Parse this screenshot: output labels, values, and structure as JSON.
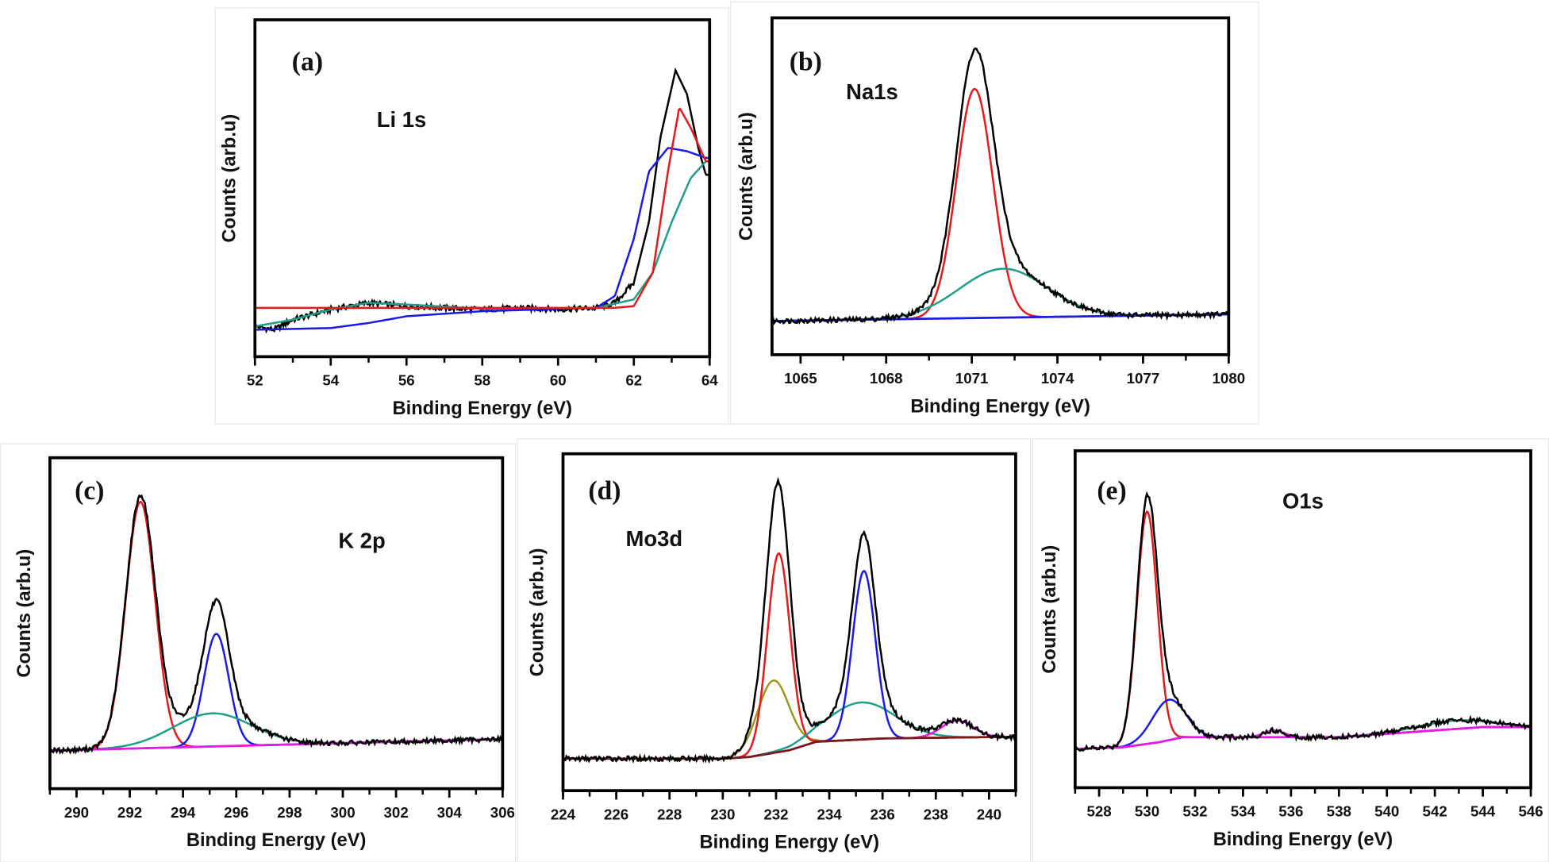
{
  "chart_data": [
    {
      "type": "line",
      "panel_label": "(a)",
      "annotation": "Li 1s",
      "xlabel": "Binding Energy (eV)",
      "ylabel": "Counts (arb.u)",
      "xlim": [
        52,
        64
      ],
      "ylim": [
        0,
        100
      ],
      "xticks": [
        52,
        54,
        56,
        58,
        60,
        62,
        64
      ],
      "minor_step": 1,
      "background": {
        "color": "",
        "points": [
          [
            52,
            9
          ],
          [
            64,
            9
          ]
        ]
      },
      "lines": [
        {
          "color": "#000000",
          "points": [
            [
              52,
              9
            ],
            [
              52.5,
              8
            ],
            [
              53,
              11
            ],
            [
              54,
              14
            ],
            [
              55,
              16
            ],
            [
              56,
              15
            ],
            [
              57,
              14.5
            ],
            [
              58,
              14
            ],
            [
              59,
              14.5
            ],
            [
              60,
              14
            ],
            [
              61,
              14.5
            ],
            [
              61.5,
              16
            ],
            [
              62,
              22
            ],
            [
              62.4,
              40
            ],
            [
              62.7,
              65
            ],
            [
              63.1,
              85
            ],
            [
              63.4,
              78
            ],
            [
              63.7,
              62
            ],
            [
              63.9,
              54
            ]
          ]
        },
        {
          "color": "#1f9e8a",
          "points": [
            [
              52,
              9
            ],
            [
              53,
              11
            ],
            [
              54,
              14
            ],
            [
              55,
              16
            ],
            [
              56,
              15.5
            ],
            [
              58,
              14.2
            ],
            [
              61,
              14.5
            ],
            [
              62,
              17
            ],
            [
              62.5,
              25
            ],
            [
              63,
              40
            ],
            [
              63.5,
              53
            ],
            [
              63.9,
              58
            ]
          ]
        },
        {
          "color": "#1a1ae6",
          "points": [
            [
              52,
              8
            ],
            [
              54,
              8.5
            ],
            [
              55,
              10
            ],
            [
              56,
              12
            ],
            [
              58,
              13.5
            ],
            [
              61,
              14.5
            ],
            [
              61.5,
              18
            ],
            [
              62,
              35
            ],
            [
              62.4,
              55
            ],
            [
              62.9,
              62
            ],
            [
              63.4,
              61
            ],
            [
              63.9,
              59
            ]
          ]
        },
        {
          "color": "#e61a1a",
          "points": [
            [
              61.5,
              14.5
            ],
            [
              62,
              15
            ],
            [
              62.5,
              25
            ],
            [
              62.9,
              55
            ],
            [
              63.2,
              74
            ],
            [
              63.5,
              68
            ],
            [
              63.9,
              58
            ]
          ]
        }
      ],
      "peaks": [],
      "envelope": false
    },
    {
      "type": "line",
      "panel_label": "(b)",
      "annotation": "Na1s",
      "xlabel": "Binding Energy (eV)",
      "ylabel": "Counts (arb.u)",
      "xlim": [
        1064,
        1080
      ],
      "ylim": [
        0,
        100
      ],
      "xticks": [
        1065,
        1068,
        1071,
        1074,
        1077,
        1080
      ],
      "minor_step": 1.5,
      "background": {
        "color": "#1a1ae6",
        "points": [
          [
            1064,
            10
          ],
          [
            1080,
            12
          ]
        ]
      },
      "lines": [],
      "peaks": [
        {
          "color": "#e61a1a",
          "center": 1071.1,
          "fwhm": 1.5,
          "height": 68
        },
        {
          "color": "#1f9e8a",
          "center": 1072.1,
          "fwhm": 3.6,
          "height": 14.5
        }
      ],
      "envelope": true
    },
    {
      "type": "line",
      "panel_label": "(c)",
      "annotation": "K 2p",
      "xlabel": "Binding Energy (eV)",
      "ylabel": "Counts (arb.u)",
      "xlim": [
        289,
        306
      ],
      "ylim": [
        0,
        100
      ],
      "xticks": [
        290,
        292,
        294,
        296,
        298,
        300,
        302,
        304,
        306
      ],
      "minor_step": 1,
      "background": {
        "color": "#e619e6",
        "points": [
          [
            289,
            11.5
          ],
          [
            306,
            15
          ]
        ]
      },
      "lines": [],
      "peaks": [
        {
          "color": "#e61a1a",
          "center": 292.4,
          "fwhm": 1.3,
          "height": 74.5
        },
        {
          "color": "#1a1ae6",
          "center": 295.25,
          "fwhm": 1.1,
          "height": 34
        },
        {
          "color": "#1f9e8a",
          "center": 295.1,
          "fwhm": 3.5,
          "height": 10
        }
      ],
      "envelope": true
    },
    {
      "type": "line",
      "panel_label": "(d)",
      "annotation": "Mo3d",
      "xlabel": "Binding Energy (eV)",
      "ylabel": "Counts (arb.u)",
      "xlim": [
        224,
        241
      ],
      "ylim": [
        0,
        100
      ],
      "xticks": [
        224,
        226,
        228,
        230,
        232,
        234,
        236,
        238,
        240
      ],
      "minor_step": 1,
      "background": {
        "color": "#7a1a1a",
        "points": [
          [
            224,
            9.5
          ],
          [
            230,
            9.5
          ],
          [
            231,
            10
          ],
          [
            232.5,
            12
          ],
          [
            233.5,
            14.5
          ],
          [
            236,
            15.5
          ],
          [
            241,
            16
          ]
        ]
      },
      "lines": [],
      "peaks": [
        {
          "color": "#9a9a1a",
          "center": 231.9,
          "fwhm": 1.4,
          "height": 21.5
        },
        {
          "color": "#e61a1a",
          "center": 232.1,
          "fwhm": 1.0,
          "height": 59
        },
        {
          "color": "#1f9e8a",
          "center": 235.2,
          "fwhm": 3.0,
          "height": 11
        },
        {
          "color": "#1a1ae6",
          "center": 235.3,
          "fwhm": 1.0,
          "height": 50
        },
        {
          "color": "#e619e6",
          "center": 238.8,
          "fwhm": 1.4,
          "height": 5
        }
      ],
      "envelope": true
    },
    {
      "type": "line",
      "panel_label": "(e)",
      "annotation": "O1s",
      "xlabel": "Binding Energy (eV)",
      "ylabel": "Counts (arb.u)",
      "xlim": [
        527,
        546
      ],
      "ylim": [
        0,
        100
      ],
      "xticks": [
        528,
        530,
        532,
        534,
        536,
        538,
        540,
        542,
        544,
        546
      ],
      "minor_step": 1,
      "background": {
        "color": "#e619e6",
        "points": [
          [
            527,
            11.5
          ],
          [
            529,
            12
          ],
          [
            530.5,
            13.5
          ],
          [
            531.5,
            15
          ],
          [
            538,
            15
          ],
          [
            540,
            16
          ],
          [
            542,
            17
          ],
          [
            544,
            18
          ],
          [
            546,
            18
          ]
        ]
      },
      "lines": [],
      "peaks": [
        {
          "color": "#e61a1a",
          "center": 530.0,
          "fwhm": 1.0,
          "height": 69
        },
        {
          "color": "#1a1ae6",
          "center": 530.9,
          "fwhm": 1.6,
          "height": 12
        },
        {
          "color": "#e619e6",
          "center": 535.3,
          "fwhm": 1.0,
          "height": 2
        },
        {
          "color": "#1f9e8a",
          "center": 542.8,
          "fwhm": 3.5,
          "height": 2.5
        }
      ],
      "envelope": true
    }
  ]
}
